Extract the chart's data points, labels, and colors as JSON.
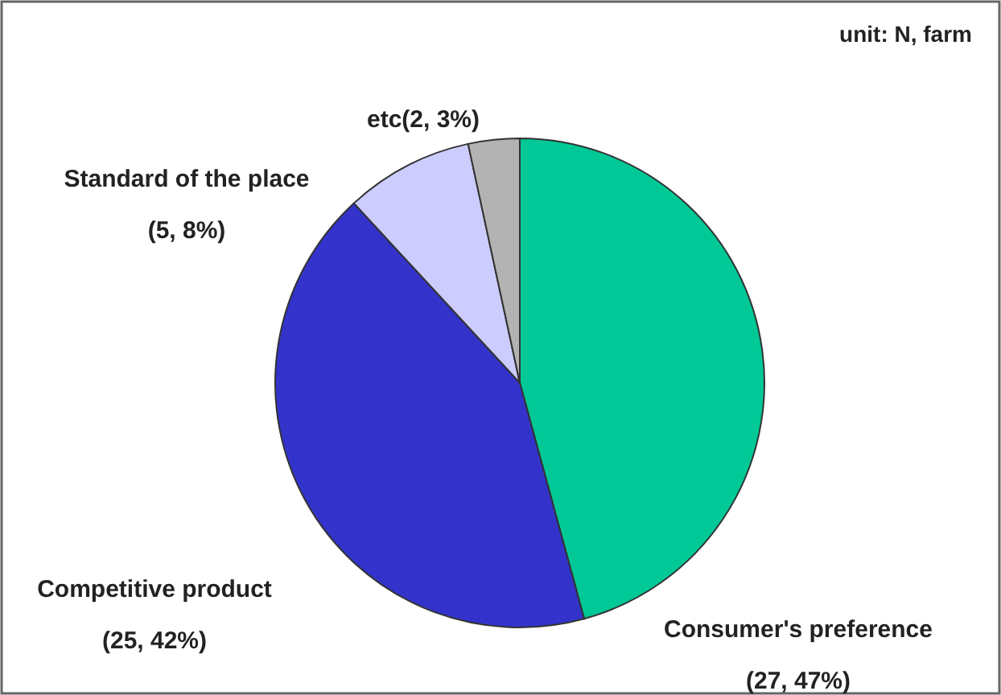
{
  "chart_data": {
    "type": "pie",
    "categories": [
      "Consumer's preference",
      "Competitive product",
      "Standard of the place",
      "etc"
    ],
    "values": [
      27,
      25,
      5,
      2
    ],
    "colors": [
      "#00c896",
      "#3333cc",
      "#ccccff",
      "#b3b3b3"
    ],
    "value_labels": [
      "(27, 47%)",
      "(25, 42%)",
      "(5, 8%)",
      "(2, 3%)"
    ],
    "annotations": [
      "unit: N, farm"
    ]
  }
}
